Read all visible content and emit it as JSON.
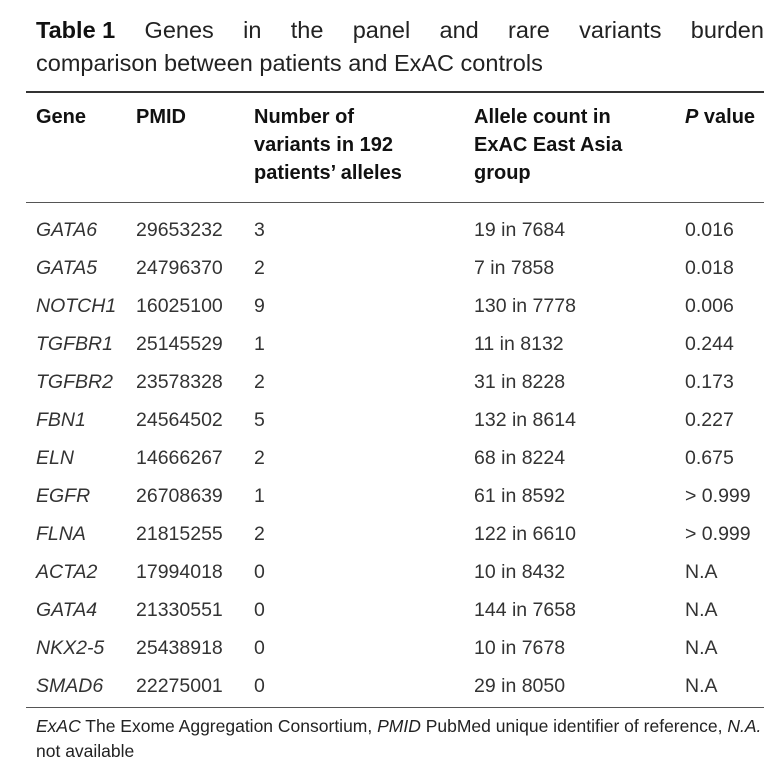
{
  "caption": {
    "label": "Table 1",
    "line1_words": [
      "Genes",
      "in",
      "the",
      "panel",
      "and",
      "rare",
      "variants",
      "burden"
    ],
    "line2": "comparison between patients and ExAC controls"
  },
  "headers": {
    "gene": "Gene",
    "pmid": "PMID",
    "variants": [
      "Number of",
      "variants in 192",
      "patients’ alleles"
    ],
    "allele": [
      "Allele count in",
      "ExAC East Asia",
      "group"
    ],
    "pvalue_italic": "P",
    "pvalue_rest": " value"
  },
  "rows": [
    {
      "gene": "GATA6",
      "pmid": "29653232",
      "variants": "3",
      "allele": "19 in 7684",
      "p": "0.016"
    },
    {
      "gene": "GATA5",
      "pmid": "24796370",
      "variants": "2",
      "allele": "7 in 7858",
      "p": "0.018"
    },
    {
      "gene": "NOTCH1",
      "pmid": "16025100",
      "variants": "9",
      "allele": "130 in 7778",
      "p": "0.006"
    },
    {
      "gene": "TGFBR1",
      "pmid": "25145529",
      "variants": "1",
      "allele": "11 in 8132",
      "p": "0.244"
    },
    {
      "gene": "TGFBR2",
      "pmid": "23578328",
      "variants": "2",
      "allele": "31 in 8228",
      "p": "0.173"
    },
    {
      "gene": "FBN1",
      "pmid": "24564502",
      "variants": "5",
      "allele": "132 in 8614",
      "p": "0.227"
    },
    {
      "gene": "ELN",
      "pmid": "14666267",
      "variants": "2",
      "allele": "68 in 8224",
      "p": "0.675"
    },
    {
      "gene": "EGFR",
      "pmid": "26708639",
      "variants": "1",
      "allele": "61 in 8592",
      "p": "> 0.999"
    },
    {
      "gene": "FLNA",
      "pmid": "21815255",
      "variants": "2",
      "allele": "122 in 6610",
      "p": "> 0.999"
    },
    {
      "gene": "ACTA2",
      "pmid": "17994018",
      "variants": "0",
      "allele": "10 in 8432",
      "p": "N.A"
    },
    {
      "gene": "GATA4",
      "pmid": "21330551",
      "variants": "0",
      "allele": "144 in 7658",
      "p": "N.A"
    },
    {
      "gene": "NKX2-5",
      "pmid": "25438918",
      "variants": "0",
      "allele": "10 in 7678",
      "p": "N.A"
    },
    {
      "gene": "SMAD6",
      "pmid": "22275001",
      "variants": "0",
      "allele": "29 in 8050",
      "p": "N.A"
    }
  ],
  "footnote": {
    "t1": "ExAC",
    "t2": " The Exome Aggregation Consortium, ",
    "t3": "PMID",
    "t4": " PubMed unique identifier of reference, ",
    "t5": "N.A.",
    "t6": " not available"
  }
}
